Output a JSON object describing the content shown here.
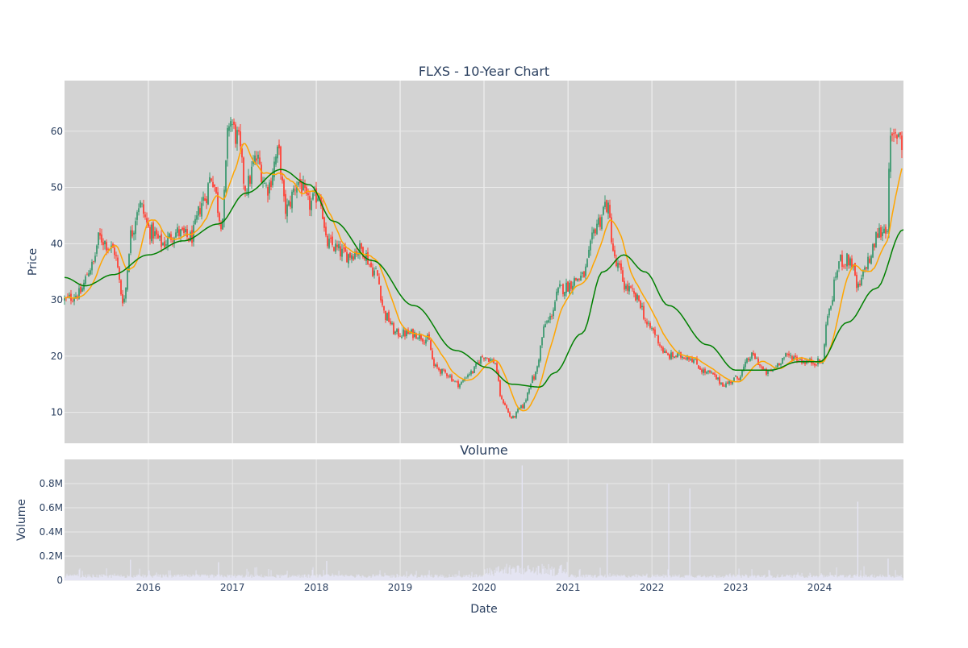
{
  "chart_data": [
    {
      "type": "candlestick",
      "title": "FLXS - 10-Year Chart",
      "ylabel": "Price",
      "xlim": [
        "2015-01-01",
        "2024-12-31"
      ],
      "ylim": [
        4.5,
        69
      ],
      "y_ticks": [
        10,
        20,
        30,
        40,
        50,
        60
      ],
      "x_ticks": [
        "2016",
        "2017",
        "2018",
        "2019",
        "2020",
        "2021",
        "2022",
        "2023",
        "2024"
      ],
      "grid": true,
      "colors": {
        "background": "#d3d3d3",
        "grid": "#eaeaea",
        "up": "#3d9970",
        "down": "#ff4136",
        "ma_short": "#ffa500",
        "ma_long": "#008000"
      },
      "close_keypoints": [
        [
          "2015-01-01",
          30
        ],
        [
          "2015-03-01",
          31
        ],
        [
          "2015-05-01",
          36
        ],
        [
          "2015-06-01",
          41
        ],
        [
          "2015-08-01",
          39
        ],
        [
          "2015-09-15",
          30
        ],
        [
          "2015-10-20",
          42
        ],
        [
          "2015-11-20",
          47
        ],
        [
          "2016-01-15",
          42
        ],
        [
          "2016-03-01",
          40
        ],
        [
          "2016-05-01",
          42
        ],
        [
          "2016-07-01",
          41
        ],
        [
          "2016-09-01",
          48
        ],
        [
          "2016-10-01",
          52
        ],
        [
          "2016-11-15",
          44
        ],
        [
          "2016-12-20",
          62
        ],
        [
          "2017-01-20",
          59
        ],
        [
          "2017-03-01",
          50
        ],
        [
          "2017-04-15",
          55
        ],
        [
          "2017-06-01",
          50
        ],
        [
          "2017-07-20",
          56
        ],
        [
          "2017-08-20",
          46
        ],
        [
          "2017-10-15",
          51
        ],
        [
          "2017-12-01",
          47
        ],
        [
          "2018-01-15",
          49
        ],
        [
          "2018-02-15",
          40
        ],
        [
          "2018-05-15",
          38
        ],
        [
          "2018-07-15",
          39
        ],
        [
          "2018-09-15",
          35
        ],
        [
          "2018-11-01",
          27
        ],
        [
          "2018-12-15",
          24
        ],
        [
          "2019-03-01",
          24
        ],
        [
          "2019-05-01",
          23
        ],
        [
          "2019-06-01",
          18
        ],
        [
          "2019-07-15",
          17
        ],
        [
          "2019-09-15",
          15
        ],
        [
          "2019-11-01",
          17
        ],
        [
          "2020-01-01",
          20
        ],
        [
          "2020-02-15",
          19
        ],
        [
          "2020-03-20",
          12
        ],
        [
          "2020-05-01",
          9
        ],
        [
          "2020-06-15",
          11
        ],
        [
          "2020-08-01",
          16
        ],
        [
          "2020-10-01",
          26
        ],
        [
          "2020-12-01",
          32
        ],
        [
          "2021-03-01",
          34
        ],
        [
          "2021-05-15",
          44
        ],
        [
          "2021-06-15",
          47
        ],
        [
          "2021-08-01",
          36
        ],
        [
          "2021-09-15",
          32
        ],
        [
          "2021-11-01",
          30
        ],
        [
          "2021-12-20",
          25
        ],
        [
          "2022-03-15",
          20
        ],
        [
          "2022-06-01",
          20
        ],
        [
          "2022-09-01",
          17
        ],
        [
          "2022-11-15",
          15
        ],
        [
          "2023-01-01",
          16
        ],
        [
          "2023-03-15",
          20
        ],
        [
          "2023-05-15",
          17
        ],
        [
          "2023-08-15",
          20
        ],
        [
          "2023-11-15",
          19
        ],
        [
          "2024-01-15",
          19
        ],
        [
          "2024-02-01",
          27
        ],
        [
          "2024-04-01",
          37
        ],
        [
          "2024-05-15",
          37
        ],
        [
          "2024-06-15",
          32
        ],
        [
          "2024-08-01",
          37
        ],
        [
          "2024-09-15",
          42
        ],
        [
          "2024-10-20",
          43
        ],
        [
          "2024-11-05",
          58
        ],
        [
          "2024-12-15",
          60
        ],
        [
          "2024-12-31",
          56
        ]
      ],
      "ma_long_keypoints": [
        [
          "2015-01-01",
          34
        ],
        [
          "2015-04-01",
          32.5
        ],
        [
          "2015-08-01",
          34.5
        ],
        [
          "2016-01-01",
          38
        ],
        [
          "2016-06-01",
          40.5
        ],
        [
          "2016-11-01",
          43.5
        ],
        [
          "2017-03-01",
          49
        ],
        [
          "2017-08-01",
          53.2
        ],
        [
          "2017-12-01",
          50.5
        ],
        [
          "2018-03-15",
          44
        ],
        [
          "2018-09-01",
          37
        ],
        [
          "2019-03-01",
          29
        ],
        [
          "2019-09-01",
          21
        ],
        [
          "2020-01-15",
          18
        ],
        [
          "2020-05-01",
          15
        ],
        [
          "2020-09-01",
          14.5
        ],
        [
          "2020-11-01",
          17
        ],
        [
          "2021-03-01",
          24
        ],
        [
          "2021-06-01",
          35
        ],
        [
          "2021-09-01",
          38
        ],
        [
          "2021-12-01",
          35
        ],
        [
          "2022-03-15",
          29
        ],
        [
          "2022-09-01",
          22
        ],
        [
          "2023-01-01",
          17.5
        ],
        [
          "2023-06-01",
          17.5
        ],
        [
          "2023-10-01",
          19
        ],
        [
          "2024-01-01",
          19
        ],
        [
          "2024-05-01",
          26
        ],
        [
          "2024-09-01",
          32
        ],
        [
          "2024-12-31",
          42.5
        ]
      ]
    },
    {
      "type": "bar",
      "title": "Volume",
      "xlabel": "Date",
      "ylabel": "Volume",
      "xlim": [
        "2015-01-01",
        "2024-12-31"
      ],
      "ylim": [
        0,
        1000000
      ],
      "y_ticks": [
        {
          "value": 0,
          "label": "0"
        },
        {
          "value": 200000,
          "label": "0.2M"
        },
        {
          "value": 400000,
          "label": "0.4M"
        },
        {
          "value": 600000,
          "label": "0.6M"
        },
        {
          "value": 800000,
          "label": "0.8M"
        }
      ],
      "x_ticks": [
        "2016",
        "2017",
        "2018",
        "2019",
        "2020",
        "2021",
        "2022",
        "2023",
        "2024"
      ],
      "grid": true,
      "bar_color": "#e5e5f5",
      "spikes": [
        [
          "2015-10-15",
          170000
        ],
        [
          "2016-11-01",
          150000
        ],
        [
          "2018-02-15",
          160000
        ],
        [
          "2020-06-15",
          950000
        ],
        [
          "2021-06-20",
          800000
        ],
        [
          "2022-03-15",
          800000
        ],
        [
          "2022-06-15",
          760000
        ],
        [
          "2024-06-15",
          650000
        ],
        [
          "2024-10-25",
          180000
        ]
      ]
    }
  ]
}
